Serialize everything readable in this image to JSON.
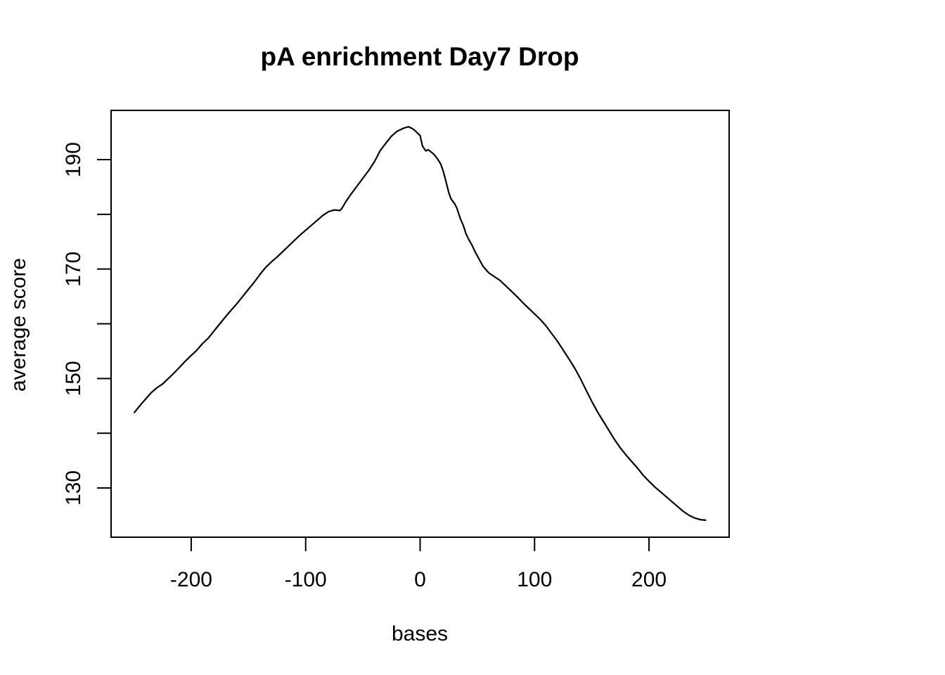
{
  "chart_data": {
    "type": "line",
    "title": "pA enrichment Day7 Drop",
    "xlabel": "bases",
    "ylabel": "average score",
    "xlim": [
      -270,
      270
    ],
    "ylim": [
      121,
      199
    ],
    "xticks": [
      -200,
      -100,
      0,
      100,
      200
    ],
    "xtick_labels": [
      "-200",
      "-100",
      "0",
      "100",
      "200"
    ],
    "yticks": [
      130,
      140,
      150,
      160,
      170,
      180,
      190
    ],
    "ytick_labels": [
      "130",
      "",
      "150",
      "",
      "170",
      "",
      "190"
    ],
    "grid": false,
    "legend": "none",
    "line_color": "#000000",
    "series": [
      {
        "x": [
          -250,
          -245,
          -240,
          -235,
          -230,
          -225,
          -220,
          -215,
          -210,
          -205,
          -200,
          -195,
          -190,
          -185,
          -180,
          -175,
          -170,
          -165,
          -160,
          -155,
          -150,
          -145,
          -140,
          -135,
          -130,
          -125,
          -120,
          -115,
          -110,
          -105,
          -100,
          -95,
          -90,
          -85,
          -80,
          -75,
          -70,
          -68,
          -65,
          -60,
          -55,
          -50,
          -45,
          -40,
          -35,
          -30,
          -25,
          -20,
          -15,
          -12,
          -10,
          -7,
          -5,
          -2,
          0,
          2,
          5,
          7,
          9,
          12,
          15,
          18,
          20,
          22,
          25,
          27,
          30,
          32,
          35,
          38,
          40,
          43,
          45,
          48,
          50,
          55,
          60,
          65,
          70,
          75,
          80,
          85,
          90,
          95,
          100,
          105,
          110,
          115,
          120,
          125,
          130,
          135,
          140,
          145,
          150,
          155,
          160,
          165,
          170,
          175,
          180,
          185,
          190,
          195,
          200,
          205,
          210,
          215,
          220,
          225,
          230,
          235,
          240,
          245,
          250
        ],
        "y": [
          143.7,
          145.0,
          146.2,
          147.4,
          148.3,
          149.0,
          150.0,
          151.0,
          152.1,
          153.2,
          154.2,
          155.2,
          156.4,
          157.4,
          158.7,
          160.0,
          161.3,
          162.5,
          163.7,
          165.0,
          166.3,
          167.6,
          169.0,
          170.3,
          171.3,
          172.2,
          173.2,
          174.2,
          175.2,
          176.2,
          177.1,
          178.0,
          178.9,
          179.8,
          180.5,
          180.8,
          180.7,
          181.2,
          182.3,
          183.8,
          185.2,
          186.6,
          188.0,
          189.6,
          191.6,
          193.0,
          194.3,
          195.2,
          195.7,
          195.9,
          196.0,
          195.7,
          195.4,
          194.8,
          194.4,
          192.5,
          191.6,
          191.8,
          191.5,
          191.0,
          190.2,
          189.2,
          188.0,
          186.5,
          184.0,
          182.8,
          182.0,
          181.2,
          179.3,
          177.8,
          176.5,
          175.2,
          174.5,
          173.2,
          172.4,
          170.5,
          169.3,
          168.6,
          167.9,
          166.9,
          165.9,
          164.9,
          163.8,
          162.8,
          161.8,
          160.8,
          159.6,
          158.2,
          156.8,
          155.2,
          153.6,
          151.9,
          150.0,
          147.9,
          145.8,
          143.9,
          142.2,
          140.5,
          138.8,
          137.3,
          136.0,
          134.8,
          133.6,
          132.3,
          131.2,
          130.2,
          129.3,
          128.4,
          127.5,
          126.6,
          125.7,
          125.0,
          124.5,
          124.2,
          124.1
        ]
      }
    ]
  }
}
